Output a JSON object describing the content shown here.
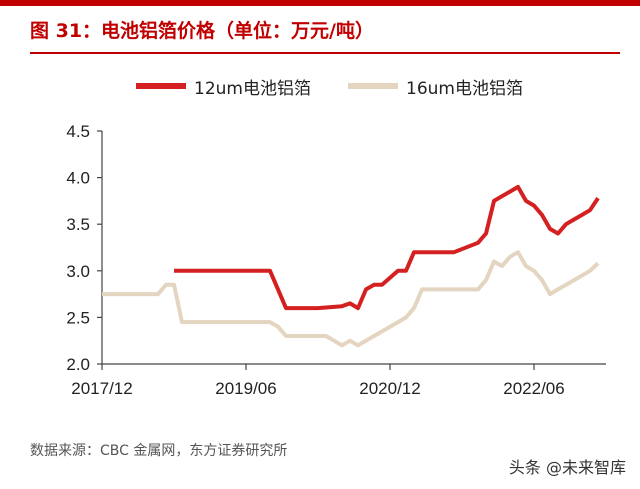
{
  "header": {
    "title": "图 31：电池铝箔价格（单位：万元/吨）"
  },
  "footer": {
    "source": "数据来源：CBC 金属网，东方证券研究所",
    "watermark": "头条 @未来智库"
  },
  "colors": {
    "accent": "#c00000",
    "series_12um": "#d42020",
    "series_16um": "#e3d5bf"
  },
  "chart_data": {
    "type": "line",
    "title": "",
    "xlabel": "",
    "ylabel": "",
    "ylim": [
      2.0,
      4.5
    ],
    "yticks": [
      2.0,
      2.5,
      3.0,
      3.5,
      4.0,
      4.5
    ],
    "ytick_labels": [
      "2.0",
      "2.5",
      "3.0",
      "3.5",
      "4.0",
      "4.5"
    ],
    "xlim": [
      "2017-12",
      "2023-03"
    ],
    "xticks": [
      "2017-12",
      "2019-06",
      "2020-12",
      "2022-06"
    ],
    "xtick_labels": [
      "2017/12",
      "2019/06",
      "2020/12",
      "2022/06"
    ],
    "grid": false,
    "legend": "top",
    "series": [
      {
        "name": "12um电池铝箔",
        "color": "#d42020",
        "x": [
          "2018-09",
          "2019-09",
          "2019-10",
          "2019-11",
          "2020-03",
          "2020-06",
          "2020-07",
          "2020-08",
          "2020-09",
          "2020-10",
          "2020-11",
          "2021-01",
          "2021-02",
          "2021-03",
          "2021-04",
          "2021-05",
          "2021-08",
          "2021-11",
          "2021-12",
          "2022-01",
          "2022-02",
          "2022-03",
          "2022-04",
          "2022-05",
          "2022-06",
          "2022-07",
          "2022-08",
          "2022-09",
          "2022-10",
          "2022-11",
          "2022-12",
          "2023-01",
          "2023-02"
        ],
        "y": [
          3.0,
          3.0,
          2.8,
          2.6,
          2.6,
          2.62,
          2.65,
          2.6,
          2.8,
          2.85,
          2.85,
          3.0,
          3.0,
          3.2,
          3.2,
          3.2,
          3.2,
          3.3,
          3.4,
          3.75,
          3.8,
          3.85,
          3.9,
          3.75,
          3.7,
          3.6,
          3.45,
          3.4,
          3.5,
          3.55,
          3.6,
          3.65,
          3.78
        ]
      },
      {
        "name": "16um电池铝箔",
        "color": "#e3d5bf",
        "x": [
          "2017-12",
          "2018-07",
          "2018-08",
          "2018-09",
          "2018-10",
          "2019-09",
          "2019-10",
          "2019-11",
          "2020-04",
          "2020-05",
          "2020-06",
          "2020-07",
          "2020-08",
          "2020-09",
          "2020-10",
          "2020-11",
          "2021-01",
          "2021-02",
          "2021-03",
          "2021-04",
          "2021-08",
          "2021-11",
          "2021-12",
          "2022-01",
          "2022-02",
          "2022-03",
          "2022-04",
          "2022-05",
          "2022-06",
          "2022-07",
          "2022-08",
          "2022-09",
          "2022-10",
          "2022-11",
          "2022-12",
          "2023-01",
          "2023-02"
        ],
        "y": [
          2.75,
          2.75,
          2.85,
          2.85,
          2.45,
          2.45,
          2.4,
          2.3,
          2.3,
          2.25,
          2.2,
          2.25,
          2.2,
          2.25,
          2.3,
          2.35,
          2.45,
          2.5,
          2.6,
          2.8,
          2.8,
          2.8,
          2.9,
          3.1,
          3.05,
          3.15,
          3.2,
          3.05,
          3.0,
          2.9,
          2.75,
          2.8,
          2.85,
          2.9,
          2.95,
          3.0,
          3.08
        ]
      }
    ]
  }
}
